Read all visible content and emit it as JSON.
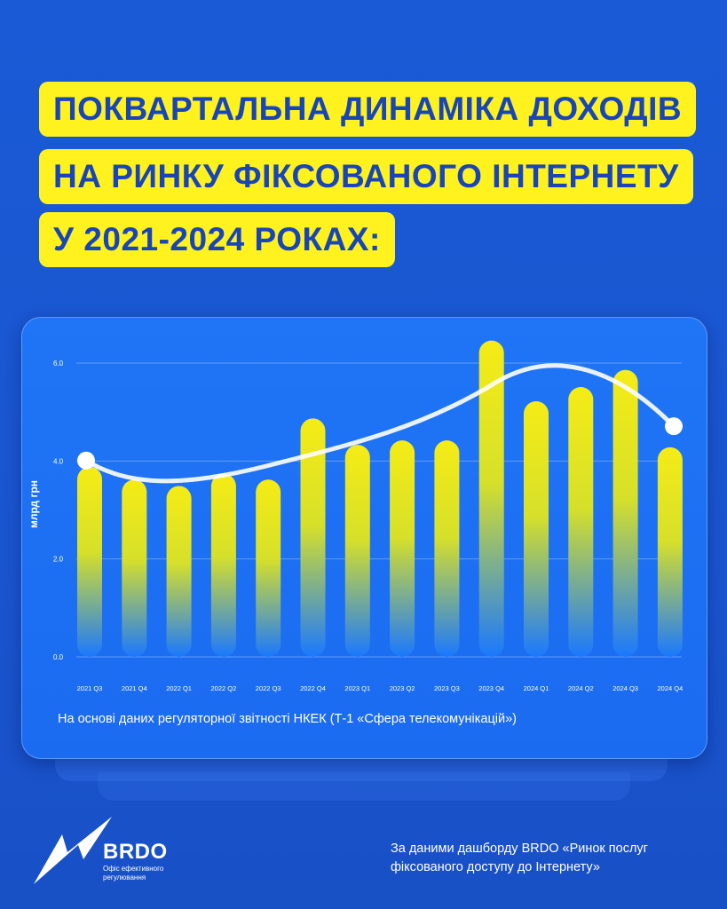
{
  "title": {
    "line1": "ПОКВАРТАЛЬНА ДИНАМІКА ДОХОДІВ",
    "line2": "НА РИНКУ ФІКСОВАНОГО ІНТЕРНЕТУ",
    "line3": "У 2021-2024 РОКАХ:"
  },
  "colors": {
    "background": "#1a5ad6",
    "title_bg": "#fff21f",
    "title_text": "#1845b8",
    "bar_top": "#f5ec16",
    "bar_bottom": "#1a78ff",
    "trend_line": "#ffffff"
  },
  "chart_data": {
    "type": "bar",
    "title": "",
    "ylabel": "млрд грн",
    "xlabel": "",
    "ylim": [
      0,
      6.0
    ],
    "yticks": [
      0.0,
      2.0,
      4.0,
      6.0
    ],
    "ytick_labels": [
      "0.0",
      "2.0",
      "4.0",
      "6.0"
    ],
    "grid": true,
    "categories": [
      "2021 Q3",
      "2021 Q4",
      "2022 Q1",
      "2022 Q2",
      "2022 Q3",
      "2022 Q4",
      "2023 Q1",
      "2023 Q2",
      "2023 Q3",
      "2023 Q4",
      "2024 Q1",
      "2024 Q2",
      "2024 Q3",
      "2024 Q4"
    ],
    "values": [
      3.88,
      3.62,
      3.49,
      3.74,
      3.62,
      4.87,
      4.33,
      4.42,
      4.42,
      6.46,
      5.22,
      5.51,
      5.86,
      4.28
    ],
    "trend": {
      "type": "smoothed line",
      "endpoints": [
        4.01,
        4.71
      ]
    }
  },
  "source_note": "На основі даних регуляторної звітності НКЕК (Т-1 «Сфера телекомунікацій»)",
  "logo": {
    "brand": "BRDO",
    "subtitle": "Офіс ефективного регулювання"
  },
  "footer": "За даними дашборду BRDO «Ринок послуг фіксованого доступу до Інтернету»"
}
